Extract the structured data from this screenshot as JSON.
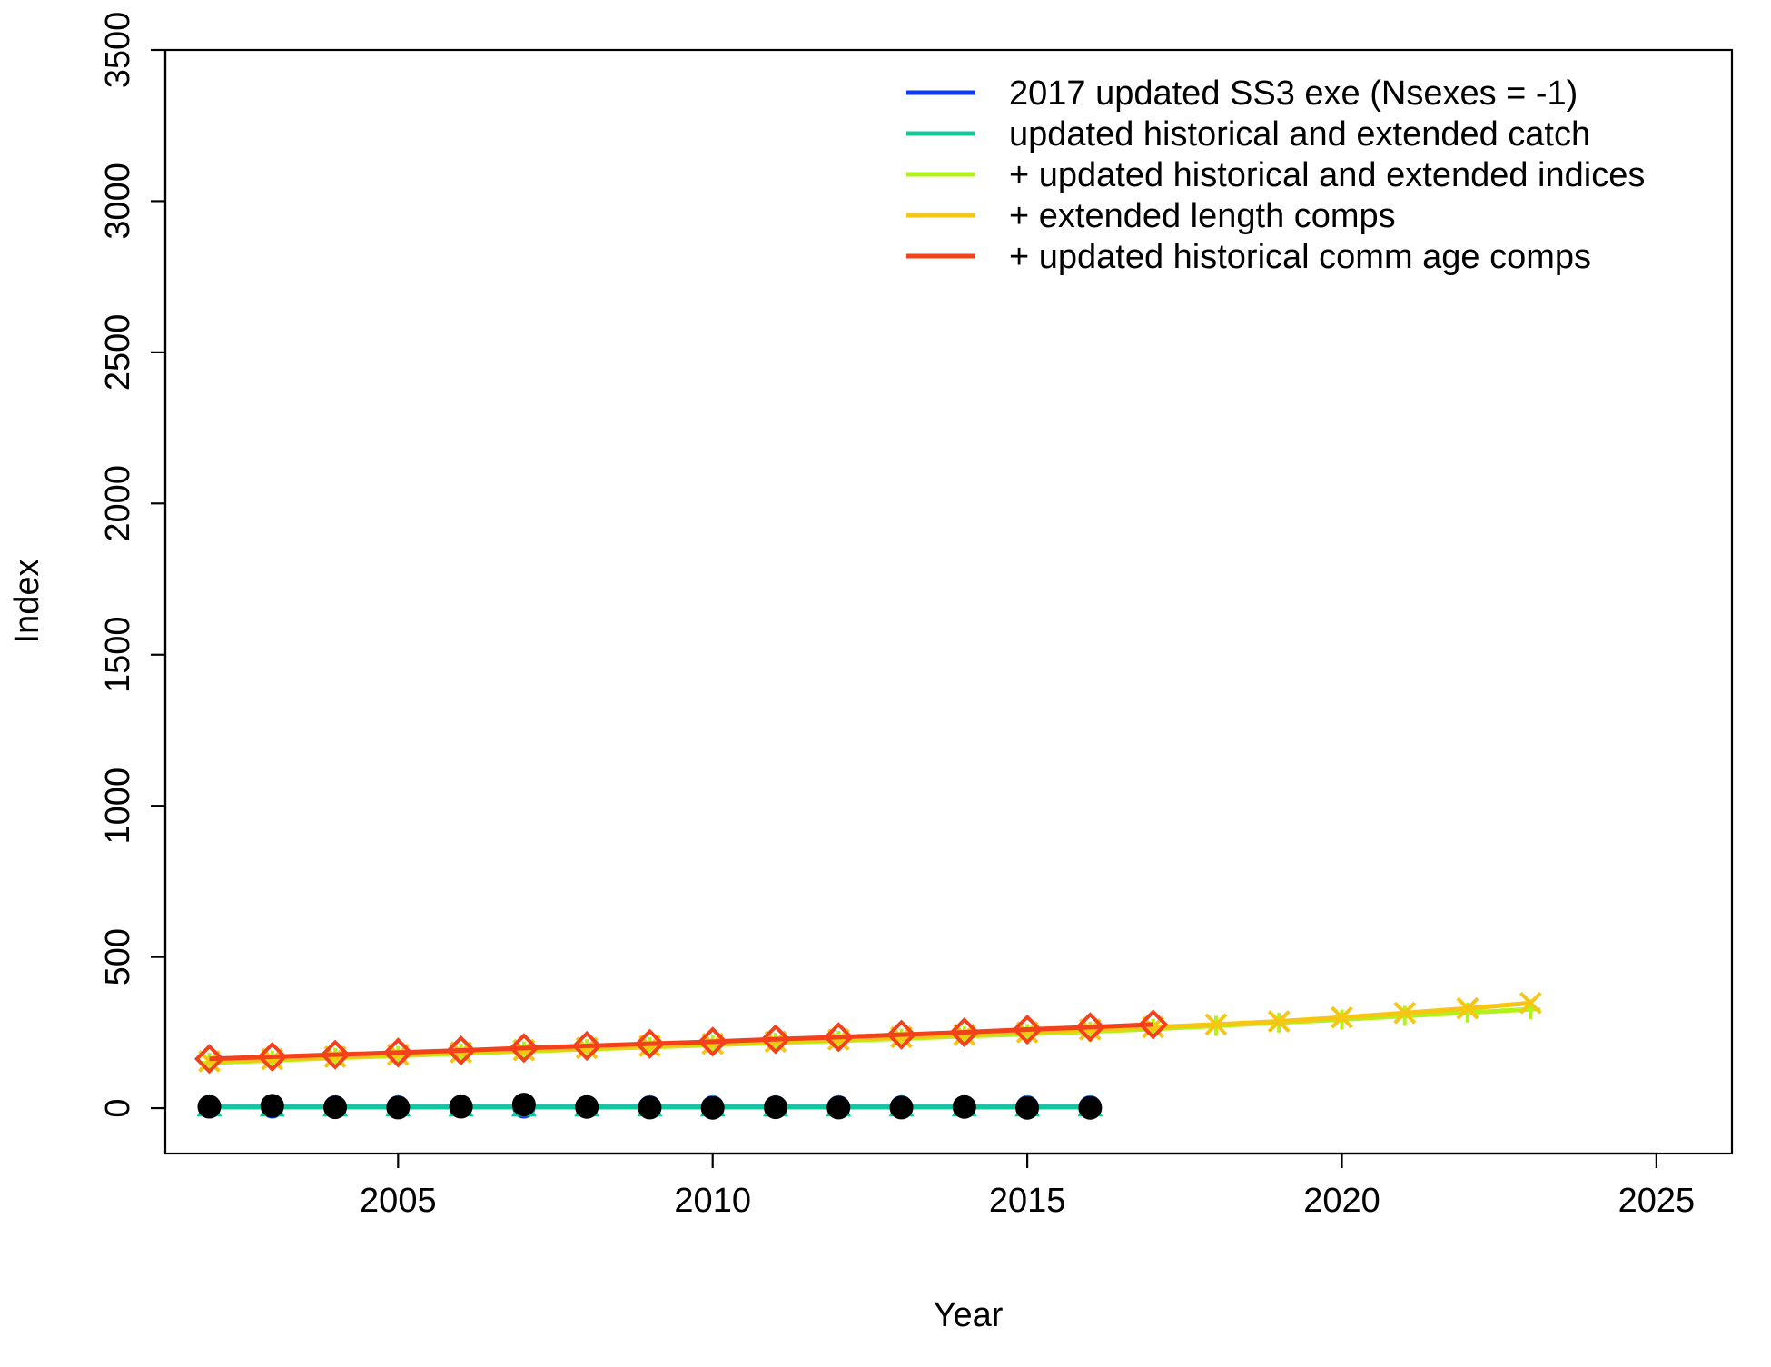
{
  "chart_data": {
    "type": "line",
    "title": "",
    "xlabel": "Year",
    "ylabel": "Index",
    "xlim": [
      2001.3,
      2026.2
    ],
    "ylim": [
      -150,
      3500
    ],
    "xticks": [
      2005,
      2010,
      2015,
      2020,
      2025
    ],
    "yticks": [
      0,
      500,
      1000,
      1500,
      2000,
      2500,
      3000,
      3500
    ],
    "grid": false,
    "legend_position": "top-right",
    "legend": [
      {
        "label": "2017 updated SS3 exe (Nsexes = -1)",
        "color": "#0b3bf5"
      },
      {
        "label": "updated historical and extended catch",
        "color": "#12c89a"
      },
      {
        "label": "+ updated historical and extended indices",
        "color": "#b2f21c"
      },
      {
        "label": "+ extended length comps",
        "color": "#f7c512"
      },
      {
        "label": "+ updated historical comm age comps",
        "color": "#f3411b"
      }
    ],
    "series": [
      {
        "color": "#0b3bf5",
        "marker": "circle",
        "x": [
          2002,
          2003,
          2004,
          2005,
          2006,
          2007,
          2008,
          2009,
          2010,
          2011,
          2012,
          2013,
          2014,
          2015,
          2016
        ],
        "y": [
          4,
          4,
          4,
          4,
          4,
          4,
          4,
          4,
          4,
          4,
          4,
          4,
          4,
          4,
          4
        ]
      },
      {
        "color": "#12c89a",
        "marker": "triangle",
        "x": [
          2002,
          2003,
          2004,
          2005,
          2006,
          2007,
          2008,
          2009,
          2010,
          2011,
          2012,
          2013,
          2014,
          2015,
          2016
        ],
        "y": [
          4,
          4,
          4,
          4,
          4,
          4,
          4,
          4,
          4,
          4,
          4,
          4,
          4,
          4,
          4
        ]
      },
      {
        "color": "#b2f21c",
        "marker": "plus",
        "x": [
          2002,
          2003,
          2004,
          2005,
          2006,
          2007,
          2008,
          2009,
          2010,
          2011,
          2012,
          2013,
          2014,
          2015,
          2016,
          2017,
          2018,
          2019,
          2020,
          2021,
          2022,
          2023
        ],
        "y": [
          150,
          158,
          166,
          173,
          181,
          188,
          195,
          202,
          209,
          216,
          223,
          230,
          238,
          245,
          253,
          262,
          272,
          283,
          293,
          305,
          316,
          327
        ]
      },
      {
        "color": "#f7c512",
        "marker": "cross",
        "x": [
          2002,
          2003,
          2004,
          2005,
          2006,
          2007,
          2008,
          2009,
          2010,
          2011,
          2012,
          2013,
          2014,
          2015,
          2016,
          2017,
          2018,
          2019,
          2020,
          2021,
          2022,
          2023
        ],
        "y": [
          155,
          162,
          170,
          177,
          185,
          192,
          199,
          206,
          213,
          220,
          227,
          235,
          243,
          251,
          260,
          268,
          277,
          287,
          300,
          315,
          330,
          348
        ]
      },
      {
        "color": "#f3411b",
        "marker": "diamond",
        "x": [
          2002,
          2003,
          2004,
          2005,
          2006,
          2007,
          2008,
          2009,
          2010,
          2011,
          2012,
          2013,
          2014,
          2015,
          2016,
          2017
        ],
        "y": [
          163,
          170,
          177,
          184,
          191,
          199,
          206,
          213,
          220,
          228,
          235,
          243,
          251,
          260,
          268,
          277
        ]
      }
    ],
    "observed": {
      "color": "#000000",
      "marker": "filled-circle",
      "x": [
        2002,
        2003,
        2004,
        2005,
        2006,
        2007,
        2008,
        2009,
        2010,
        2011,
        2012,
        2013,
        2014,
        2015,
        2016
      ],
      "y": [
        5,
        8,
        3,
        2,
        5,
        12,
        4,
        2,
        1,
        3,
        2,
        2,
        4,
        1,
        1
      ]
    }
  }
}
